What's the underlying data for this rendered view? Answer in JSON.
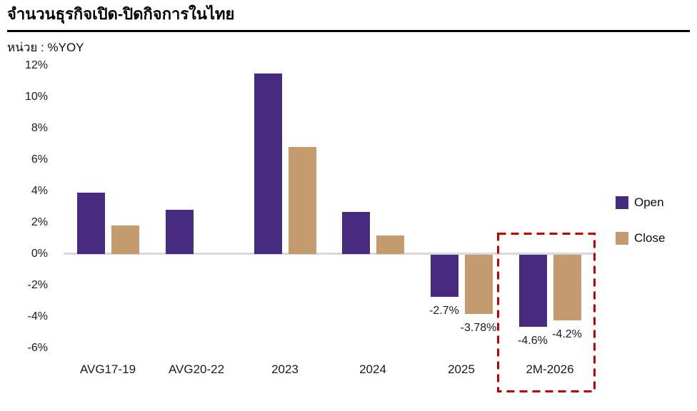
{
  "page": {
    "title": "จำนวนธุรกิจเปิด-ปิดกิจการในไทย",
    "unit_label": "หน่วย : %YOY"
  },
  "legend": {
    "open": "Open",
    "close": "Close"
  },
  "colors": {
    "open": "#462B80",
    "close": "#C39B6F",
    "highlight": "#C00000",
    "baseline": "#D9D9D9",
    "title_rule": "#000000"
  },
  "chart_data": {
    "type": "bar",
    "title": "จำนวนธุรกิจเปิด-ปิดกิจการในไทย",
    "subtitle": "หน่วย : %YOY",
    "xlabel": "",
    "ylabel": "%YOY",
    "categories": [
      "AVG17-19",
      "AVG20-22",
      "2023",
      "2024",
      "2025",
      "2M-2026"
    ],
    "series": [
      {
        "name": "Open",
        "color": "#462B80",
        "values": [
          3.9,
          2.8,
          11.5,
          2.7,
          -2.7,
          -4.6
        ],
        "labels": [
          null,
          null,
          null,
          null,
          "-2.7%",
          "-4.6%"
        ]
      },
      {
        "name": "Close",
        "color": "#C39B6F",
        "values": [
          1.8,
          0,
          6.8,
          1.2,
          -3.78,
          -4.2
        ],
        "labels": [
          null,
          null,
          null,
          null,
          "-3.78%",
          "-4.2%"
        ]
      }
    ],
    "ylim": [
      -6,
      12
    ],
    "yticks": [
      12,
      10,
      8,
      6,
      4,
      2,
      0,
      -2,
      -4,
      -6
    ],
    "ytick_suffix": "%",
    "grid": false,
    "legend_position": "right",
    "highlight_box_category": "2M-2026"
  }
}
